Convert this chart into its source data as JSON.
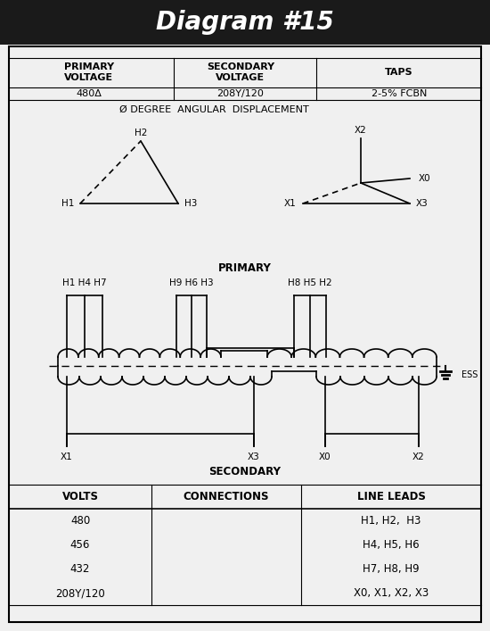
{
  "title": "Diagram #15",
  "title_bg": "#1a1a1a",
  "title_color": "#ffffff",
  "primary_voltage": "480Δ",
  "secondary_voltage": "208Y/120",
  "taps": "2-5% FCBN",
  "angular_displacement": "Ø DEGREE  ANGULAR  DISPLACEMENT",
  "table_volts": [
    "480",
    "456",
    "432",
    "208Y/120"
  ],
  "table_connections": [
    "",
    "",
    "",
    ""
  ],
  "table_line_leads": [
    "H1, H2,  H3",
    "H4, H5, H6",
    "H7, H8, H9",
    "X0, X1, X2, X3"
  ],
  "bg_color": "#f0f0f0",
  "border_color": "#000000"
}
